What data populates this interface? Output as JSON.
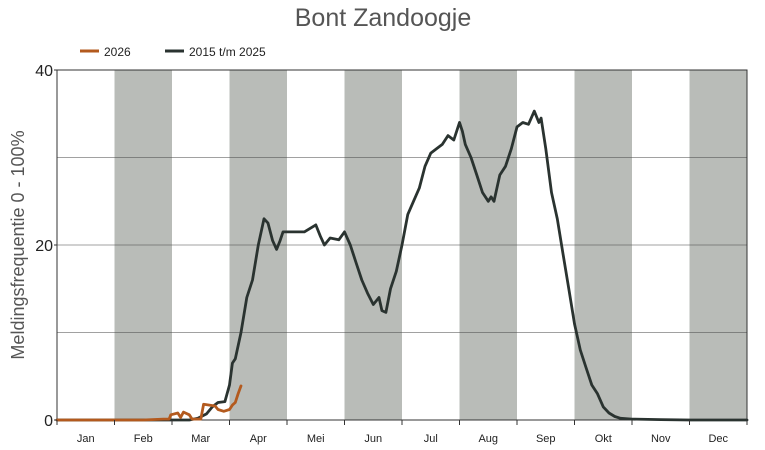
{
  "chart_data": {
    "type": "line",
    "title": "Bont Zandoogje",
    "ylabel": "Meldingsfrequentie 0 - 100%",
    "xlabel": "",
    "ylim": [
      0,
      40
    ],
    "yticks": [
      "0",
      "20",
      "40"
    ],
    "months": [
      "Jan",
      "Feb",
      "Mar",
      "Apr",
      "Mei",
      "Jun",
      "Jul",
      "Aug",
      "Sep",
      "Okt",
      "Nov",
      "Dec"
    ],
    "grid": true,
    "legend_position": "top-left",
    "colors": {
      "shade": "#b9bcb8",
      "grid": "#444444"
    },
    "series": [
      {
        "name": "2026",
        "color": "#b35a1e",
        "points": [
          [
            0,
            0
          ],
          [
            0.5,
            0
          ],
          [
            1.0,
            0
          ],
          [
            1.5,
            0
          ],
          [
            1.85,
            0.1
          ],
          [
            1.95,
            0.1
          ],
          [
            1.98,
            0.6
          ],
          [
            2.1,
            0.8
          ],
          [
            2.15,
            0.3
          ],
          [
            2.2,
            0.9
          ],
          [
            2.3,
            0.6
          ],
          [
            2.35,
            0.1
          ],
          [
            2.5,
            0.1
          ],
          [
            2.55,
            1.8
          ],
          [
            2.65,
            1.7
          ],
          [
            2.75,
            1.6
          ],
          [
            2.8,
            1.2
          ],
          [
            2.9,
            1.0
          ],
          [
            3.0,
            1.2
          ],
          [
            3.05,
            1.7
          ],
          [
            3.1,
            2.0
          ],
          [
            3.15,
            3.0
          ],
          [
            3.2,
            3.9
          ]
        ]
      },
      {
        "name": "2015 t/m 2025",
        "color": "#2a3330",
        "points": [
          [
            0,
            0
          ],
          [
            0.5,
            0
          ],
          [
            1.0,
            0
          ],
          [
            1.5,
            0
          ],
          [
            2.0,
            0
          ],
          [
            2.3,
            0
          ],
          [
            2.45,
            0.2
          ],
          [
            2.6,
            0.7
          ],
          [
            2.7,
            1.5
          ],
          [
            2.8,
            2.0
          ],
          [
            2.92,
            2.1
          ],
          [
            3.0,
            4.0
          ],
          [
            3.05,
            6.5
          ],
          [
            3.1,
            7.0
          ],
          [
            3.2,
            10.0
          ],
          [
            3.3,
            14.0
          ],
          [
            3.4,
            16.0
          ],
          [
            3.5,
            20.0
          ],
          [
            3.6,
            23.0
          ],
          [
            3.67,
            22.5
          ],
          [
            3.75,
            20.5
          ],
          [
            3.82,
            19.5
          ],
          [
            3.88,
            20.5
          ],
          [
            3.93,
            21.5
          ],
          [
            4.1,
            21.5
          ],
          [
            4.3,
            21.5
          ],
          [
            4.5,
            22.3
          ],
          [
            4.58,
            21.0
          ],
          [
            4.65,
            20.0
          ],
          [
            4.75,
            20.8
          ],
          [
            4.9,
            20.6
          ],
          [
            5.0,
            21.5
          ],
          [
            5.1,
            20.0
          ],
          [
            5.2,
            18.0
          ],
          [
            5.3,
            16.0
          ],
          [
            5.4,
            14.5
          ],
          [
            5.5,
            13.2
          ],
          [
            5.6,
            14.0
          ],
          [
            5.65,
            12.5
          ],
          [
            5.72,
            12.3
          ],
          [
            5.8,
            15.0
          ],
          [
            5.9,
            17.0
          ],
          [
            6.0,
            20.0
          ],
          [
            6.1,
            23.5
          ],
          [
            6.2,
            25.0
          ],
          [
            6.3,
            26.5
          ],
          [
            6.4,
            29.0
          ],
          [
            6.5,
            30.5
          ],
          [
            6.6,
            31.0
          ],
          [
            6.7,
            31.5
          ],
          [
            6.8,
            32.5
          ],
          [
            6.9,
            32.0
          ],
          [
            7.0,
            34.0
          ],
          [
            7.05,
            33.0
          ],
          [
            7.1,
            31.5
          ],
          [
            7.2,
            30.0
          ],
          [
            7.3,
            28.0
          ],
          [
            7.4,
            26.0
          ],
          [
            7.5,
            25.0
          ],
          [
            7.55,
            25.5
          ],
          [
            7.6,
            25.0
          ],
          [
            7.7,
            28.0
          ],
          [
            7.8,
            29.0
          ],
          [
            7.9,
            31.0
          ],
          [
            8.0,
            33.5
          ],
          [
            8.1,
            34.0
          ],
          [
            8.2,
            33.8
          ],
          [
            8.3,
            35.3
          ],
          [
            8.38,
            34.0
          ],
          [
            8.42,
            34.5
          ],
          [
            8.5,
            31.0
          ],
          [
            8.6,
            26.0
          ],
          [
            8.7,
            23.0
          ],
          [
            8.8,
            19.0
          ],
          [
            8.9,
            15.0
          ],
          [
            9.0,
            11.0
          ],
          [
            9.1,
            8.0
          ],
          [
            9.2,
            6.0
          ],
          [
            9.3,
            4.0
          ],
          [
            9.4,
            3.0
          ],
          [
            9.5,
            1.5
          ],
          [
            9.6,
            0.8
          ],
          [
            9.7,
            0.4
          ],
          [
            9.8,
            0.2
          ],
          [
            10.0,
            0.1
          ],
          [
            10.5,
            0.05
          ],
          [
            11.0,
            0
          ],
          [
            12.0,
            0
          ]
        ]
      }
    ]
  }
}
